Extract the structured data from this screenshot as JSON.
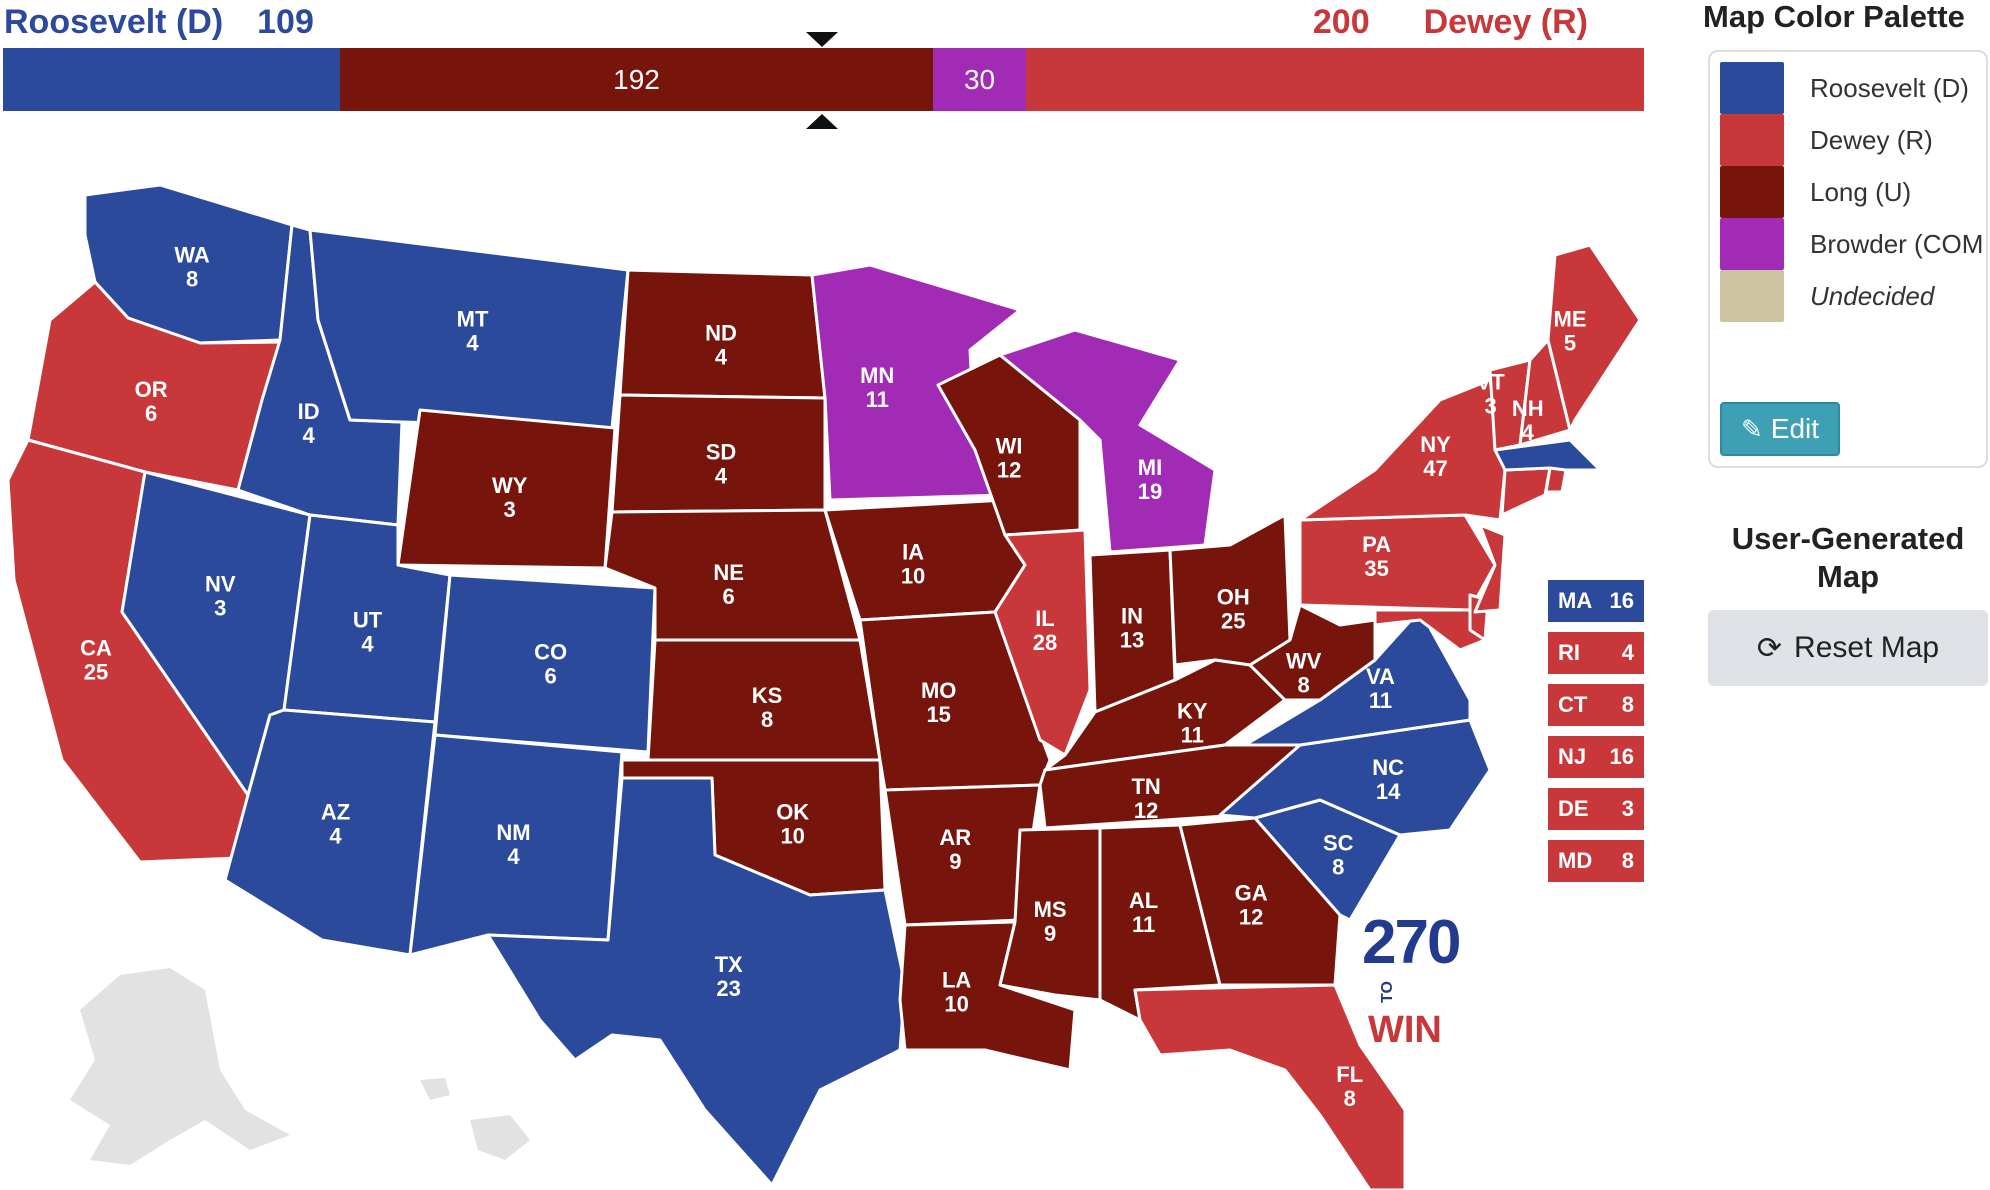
{
  "header": {
    "left_candidate": "Roosevelt (D)",
    "left_votes": "109",
    "right_votes": "200",
    "right_candidate": "Dewey (R)"
  },
  "tally_bar": [
    {
      "party": "D",
      "votes": 109,
      "label": "",
      "color": "#2c4a9c"
    },
    {
      "party": "U",
      "votes": 192,
      "label": "192",
      "color": "#77150d"
    },
    {
      "party": "COM",
      "votes": 30,
      "label": "30",
      "color": "#a12bb5"
    },
    {
      "party": "R",
      "votes": 200,
      "label": "",
      "color": "#c8373a"
    }
  ],
  "colors": {
    "D": "#2c4a9c",
    "R": "#c8373a",
    "U": "#77150d",
    "COM": "#a12bb5",
    "UND": "#ccc3a2",
    "unused": "#e2e2e2"
  },
  "states": [
    {
      "abbr": "WA",
      "ev": "8",
      "party": "D"
    },
    {
      "abbr": "OR",
      "ev": "6",
      "party": "R"
    },
    {
      "abbr": "CA",
      "ev": "25",
      "party": "R"
    },
    {
      "abbr": "NV",
      "ev": "3",
      "party": "D"
    },
    {
      "abbr": "ID",
      "ev": "4",
      "party": "D"
    },
    {
      "abbr": "MT",
      "ev": "4",
      "party": "D"
    },
    {
      "abbr": "WY",
      "ev": "3",
      "party": "U"
    },
    {
      "abbr": "UT",
      "ev": "4",
      "party": "D"
    },
    {
      "abbr": "CO",
      "ev": "6",
      "party": "D"
    },
    {
      "abbr": "AZ",
      "ev": "4",
      "party": "D"
    },
    {
      "abbr": "NM",
      "ev": "4",
      "party": "D"
    },
    {
      "abbr": "ND",
      "ev": "4",
      "party": "U"
    },
    {
      "abbr": "SD",
      "ev": "4",
      "party": "U"
    },
    {
      "abbr": "NE",
      "ev": "6",
      "party": "U"
    },
    {
      "abbr": "KS",
      "ev": "8",
      "party": "U"
    },
    {
      "abbr": "OK",
      "ev": "10",
      "party": "U"
    },
    {
      "abbr": "TX",
      "ev": "23",
      "party": "D"
    },
    {
      "abbr": "MN",
      "ev": "11",
      "party": "COM"
    },
    {
      "abbr": "IA",
      "ev": "10",
      "party": "U"
    },
    {
      "abbr": "MO",
      "ev": "15",
      "party": "U"
    },
    {
      "abbr": "AR",
      "ev": "9",
      "party": "U"
    },
    {
      "abbr": "LA",
      "ev": "10",
      "party": "U"
    },
    {
      "abbr": "WI",
      "ev": "12",
      "party": "U"
    },
    {
      "abbr": "IL",
      "ev": "28",
      "party": "R"
    },
    {
      "abbr": "MI",
      "ev": "19",
      "party": "COM"
    },
    {
      "abbr": "IN",
      "ev": "13",
      "party": "U"
    },
    {
      "abbr": "OH",
      "ev": "25",
      "party": "U"
    },
    {
      "abbr": "KY",
      "ev": "11",
      "party": "U"
    },
    {
      "abbr": "TN",
      "ev": "12",
      "party": "U"
    },
    {
      "abbr": "MS",
      "ev": "9",
      "party": "U"
    },
    {
      "abbr": "AL",
      "ev": "11",
      "party": "U"
    },
    {
      "abbr": "GA",
      "ev": "12",
      "party": "U"
    },
    {
      "abbr": "FL",
      "ev": "8",
      "party": "R"
    },
    {
      "abbr": "SC",
      "ev": "8",
      "party": "D"
    },
    {
      "abbr": "NC",
      "ev": "14",
      "party": "D"
    },
    {
      "abbr": "VA",
      "ev": "11",
      "party": "D"
    },
    {
      "abbr": "WV",
      "ev": "8",
      "party": "U"
    },
    {
      "abbr": "PA",
      "ev": "35",
      "party": "R"
    },
    {
      "abbr": "NY",
      "ev": "47",
      "party": "R"
    },
    {
      "abbr": "VT",
      "ev": "3",
      "party": "R"
    },
    {
      "abbr": "NH",
      "ev": "4",
      "party": "R"
    },
    {
      "abbr": "ME",
      "ev": "5",
      "party": "R"
    }
  ],
  "small_states": [
    {
      "abbr": "MA",
      "ev": "16",
      "party": "D"
    },
    {
      "abbr": "RI",
      "ev": "4",
      "party": "R"
    },
    {
      "abbr": "CT",
      "ev": "8",
      "party": "R"
    },
    {
      "abbr": "NJ",
      "ev": "16",
      "party": "R"
    },
    {
      "abbr": "DE",
      "ev": "3",
      "party": "R"
    },
    {
      "abbr": "MD",
      "ev": "8",
      "party": "R"
    }
  ],
  "logo": {
    "number": "270",
    "to": "TO",
    "word": "WIN"
  },
  "palette": {
    "title": "Map Color Palette",
    "items": [
      {
        "label": "Roosevelt (D)",
        "party": "D",
        "italic": false
      },
      {
        "label": "Dewey (R)",
        "party": "R",
        "italic": false
      },
      {
        "label": "Long (U)",
        "party": "U",
        "italic": false
      },
      {
        "label": "Browder (COM",
        "party": "COM",
        "italic": false
      },
      {
        "label": "Undecided",
        "party": "UND",
        "italic": true
      }
    ],
    "edit_label": "Edit",
    "edit_icon": "pencil-icon"
  },
  "user_map": {
    "title_line1": "User-Generated",
    "title_line2": "Map",
    "reset_label": "Reset Map",
    "reset_icon": "refresh-icon"
  }
}
